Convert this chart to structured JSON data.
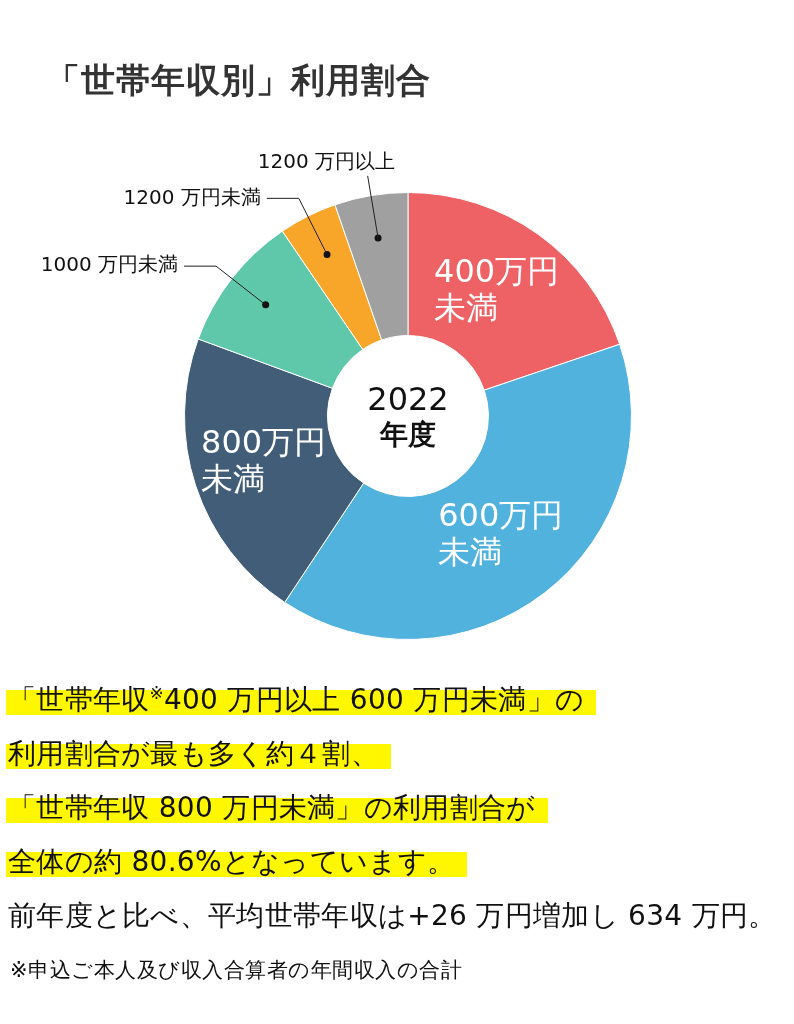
{
  "chart_data": {
    "type": "donut",
    "title": "「世帯年収別」利用割合",
    "subtitle": "2022年度",
    "categories": [
      "400万円未満",
      "600万円未満",
      "800万円未満",
      "1000 万円未満",
      "1200 万円未満",
      "1200 万円以上"
    ],
    "values": [
      19.8,
      39.5,
      21.3,
      9.9,
      4.2,
      5.3
    ],
    "colors": [
      "#ee6266",
      "#52b2de",
      "#425d78",
      "#5fc7aa",
      "#f8a629",
      "#a0a0a0"
    ],
    "annotations": [
      "「世帯年収$^{※}$400 万円以上 600 万円未満」の",
      "利用割合が最も多く約４割、",
      "「世帯年収 800 万円未満」の利用割合が",
      "全体の約 80.6%となっています。",
      "前年度と比べ、平均世帯年収は+26 万円増加し 634 万円。",
      "※申込ご本人及び収入合算者の年間収入の合計"
    ]
  }
}
